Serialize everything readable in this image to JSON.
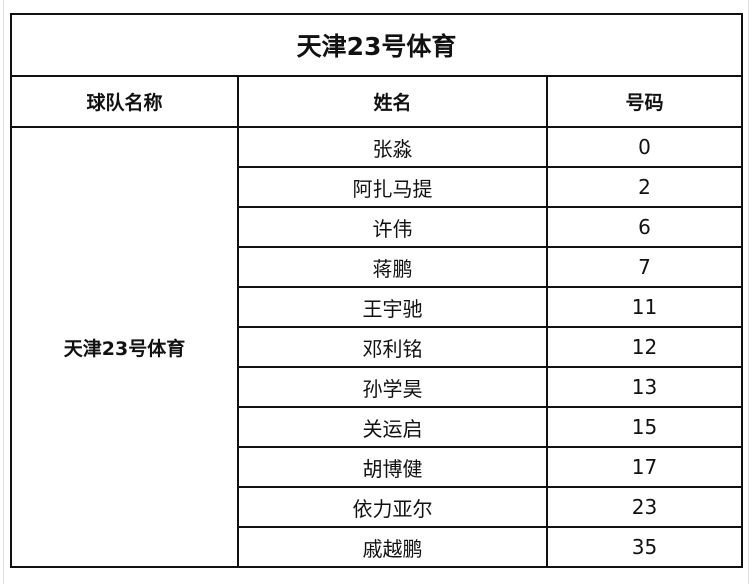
{
  "title": "天津23号体育",
  "headers": [
    "球队名称",
    "姓名",
    "号码"
  ],
  "team": "天津23号体育",
  "players": [
    {
      "name": "张淼",
      "number": "0"
    },
    {
      "name": "阿扎马提",
      "number": "2"
    },
    {
      "name": "许伟",
      "number": "6"
    },
    {
      "name": "蒋鹏",
      "number": "7"
    },
    {
      "name": "王宇驰",
      "number": "11"
    },
    {
      "name": "邓利铭",
      "number": "12"
    },
    {
      "name": "孙学昊",
      "number": "13"
    },
    {
      "name": "关运启",
      "number": "15"
    },
    {
      "name": "胡博健",
      "number": "17"
    },
    {
      "name": "依力亚尔",
      "number": "23"
    },
    {
      "name": "戚越鹏",
      "number": "35"
    }
  ]
}
